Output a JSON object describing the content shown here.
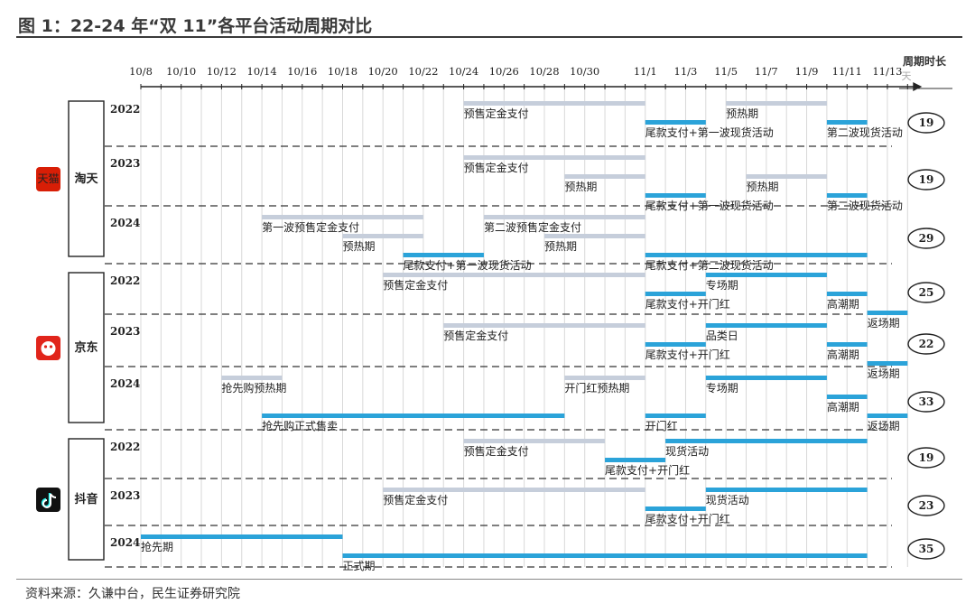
{
  "title": "图 1：22-24 年“双 11”各平台活动周期对比",
  "source": "资料来源：久谦中台，民生证券研究院",
  "duration_header": {
    "title": "周期时长",
    "unit": "天"
  },
  "colors": {
    "presale": "#c6cedb",
    "main": "#2ba3d9",
    "axis": "#222222",
    "grid": "#d8d8d8"
  },
  "platforms": [
    {
      "name": "淘天",
      "icon": "tmall-icon",
      "icon_text": "天猫"
    },
    {
      "name": "京东",
      "icon": "jd-icon",
      "icon_text": ""
    },
    {
      "name": "抖音",
      "icon": "douyin-icon",
      "icon_text": ""
    }
  ],
  "chart_data": {
    "type": "gantt",
    "x_ticks": [
      "10/8",
      "10/10",
      "10/12",
      "10/14",
      "10/16",
      "10/18",
      "10/20",
      "10/22",
      "10/24",
      "10/26",
      "10/28",
      "10/30",
      "11/1",
      "11/3",
      "11/5",
      "11/7",
      "11/9",
      "11/11",
      "11/13"
    ],
    "x_start": "10/8",
    "x_end": "11/14",
    "rows": [
      {
        "platform": "淘天",
        "year": "2022",
        "duration": "19",
        "bars": [
          {
            "label": "预售定金支付",
            "start": "10/24",
            "end": "11/1",
            "kind": "presale",
            "lane": 0
          },
          {
            "label": "尾款支付+第一波现货活动",
            "start": "11/1",
            "end": "11/4",
            "kind": "main",
            "lane": 1
          },
          {
            "label": "预热期",
            "start": "11/5",
            "end": "11/10",
            "kind": "presale",
            "lane": 0
          },
          {
            "label": "第二波现货活动",
            "start": "11/10",
            "end": "11/12",
            "kind": "main",
            "lane": 1
          }
        ]
      },
      {
        "platform": "淘天",
        "year": "2023",
        "duration": "19",
        "bars": [
          {
            "label": "预售定金支付",
            "start": "10/24",
            "end": "11/1",
            "kind": "presale",
            "lane": 0
          },
          {
            "label": "预热期",
            "start": "10/29",
            "end": "11/1",
            "kind": "presale",
            "lane": 1
          },
          {
            "label": "尾款支付+第一波现货活动",
            "start": "11/1",
            "end": "11/4",
            "kind": "main",
            "lane": 2
          },
          {
            "label": "预热期",
            "start": "11/6",
            "end": "11/10",
            "kind": "presale",
            "lane": 1
          },
          {
            "label": "第二波现货活动",
            "start": "11/10",
            "end": "11/12",
            "kind": "main",
            "lane": 2
          }
        ]
      },
      {
        "platform": "淘天",
        "year": "2024",
        "duration": "29",
        "bars": [
          {
            "label": "第一波预售定金支付",
            "start": "10/14",
            "end": "10/22",
            "kind": "presale",
            "lane": 0
          },
          {
            "label": "预热期",
            "start": "10/18",
            "end": "10/22",
            "kind": "presale",
            "lane": 1
          },
          {
            "label": "尾款支付+第一波现货活动",
            "start": "10/21",
            "end": "10/25",
            "kind": "main",
            "lane": 2
          },
          {
            "label": "第二波预售定金支付",
            "start": "10/25",
            "end": "11/1",
            "kind": "presale",
            "lane": 0
          },
          {
            "label": "预热期",
            "start": "10/28",
            "end": "11/1",
            "kind": "presale",
            "lane": 1
          },
          {
            "label": "尾款支付+第二波现货活动",
            "start": "11/1",
            "end": "11/12",
            "kind": "main",
            "lane": 2
          }
        ]
      },
      {
        "platform": "京东",
        "year": "2022",
        "duration": "25",
        "bars": [
          {
            "label": "预售定金支付",
            "start": "10/20",
            "end": "11/1",
            "kind": "presale",
            "lane": 0
          },
          {
            "label": "尾款支付+开门红",
            "start": "11/1",
            "end": "11/4",
            "kind": "main",
            "lane": 1
          },
          {
            "label": "专场期",
            "start": "11/4",
            "end": "11/10",
            "kind": "main",
            "lane": 0
          },
          {
            "label": "高潮期",
            "start": "11/10",
            "end": "11/12",
            "kind": "main",
            "lane": 1
          },
          {
            "label": "返场期",
            "start": "11/12",
            "end": "11/14",
            "kind": "main",
            "lane": 2
          }
        ]
      },
      {
        "platform": "京东",
        "year": "2023",
        "duration": "22",
        "bars": [
          {
            "label": "预售定金支付",
            "start": "10/23",
            "end": "11/1",
            "kind": "presale",
            "lane": 0
          },
          {
            "label": "品类日",
            "start": "11/4",
            "end": "11/10",
            "kind": "main",
            "lane": 0
          },
          {
            "label": "尾款支付+开门红",
            "start": "11/1",
            "end": "11/4",
            "kind": "main",
            "lane": 1
          },
          {
            "label": "高潮期",
            "start": "11/10",
            "end": "11/12",
            "kind": "main",
            "lane": 1
          },
          {
            "label": "返场期",
            "start": "11/12",
            "end": "11/14",
            "kind": "main",
            "lane": 2
          }
        ]
      },
      {
        "platform": "京东",
        "year": "2024",
        "duration": "33",
        "bars": [
          {
            "label": "抢先购预热期",
            "start": "10/12",
            "end": "10/15",
            "kind": "presale",
            "lane": 0
          },
          {
            "label": "开门红预热期",
            "start": "10/29",
            "end": "11/1",
            "kind": "presale",
            "lane": 0
          },
          {
            "label": "专场期",
            "start": "11/4",
            "end": "11/10",
            "kind": "main",
            "lane": 0
          },
          {
            "label": "高潮期",
            "start": "11/10",
            "end": "11/12",
            "kind": "main",
            "lane": 1
          },
          {
            "label": "抢先购正式售卖",
            "start": "10/14",
            "end": "10/29",
            "kind": "main",
            "lane": 2
          },
          {
            "label": "开门红",
            "start": "11/1",
            "end": "11/4",
            "kind": "main",
            "lane": 2
          },
          {
            "label": "返场期",
            "start": "11/12",
            "end": "11/14",
            "kind": "main",
            "lane": 2
          }
        ]
      },
      {
        "platform": "抖音",
        "year": "2022",
        "duration": "19",
        "bars": [
          {
            "label": "预售定金支付",
            "start": "10/24",
            "end": "10/31",
            "kind": "presale",
            "lane": 0
          },
          {
            "label": "现货活动",
            "start": "11/2",
            "end": "11/12",
            "kind": "main",
            "lane": 0
          },
          {
            "label": "尾款支付+开门红",
            "start": "10/31",
            "end": "11/2",
            "kind": "main",
            "lane": 1
          }
        ]
      },
      {
        "platform": "抖音",
        "year": "2023",
        "duration": "23",
        "bars": [
          {
            "label": "预售定金支付",
            "start": "10/20",
            "end": "11/1",
            "kind": "presale",
            "lane": 0
          },
          {
            "label": "现货活动",
            "start": "11/4",
            "end": "11/12",
            "kind": "main",
            "lane": 0
          },
          {
            "label": "尾款支付+开门红",
            "start": "11/1",
            "end": "11/4",
            "kind": "main",
            "lane": 1
          }
        ]
      },
      {
        "platform": "抖音",
        "year": "2024",
        "duration": "35",
        "bars": [
          {
            "label": "抢先期",
            "start": "10/8",
            "end": "10/18",
            "kind": "main",
            "lane": 0
          },
          {
            "label": "正式期",
            "start": "10/18",
            "end": "11/12",
            "kind": "main",
            "lane": 1
          }
        ]
      }
    ]
  }
}
